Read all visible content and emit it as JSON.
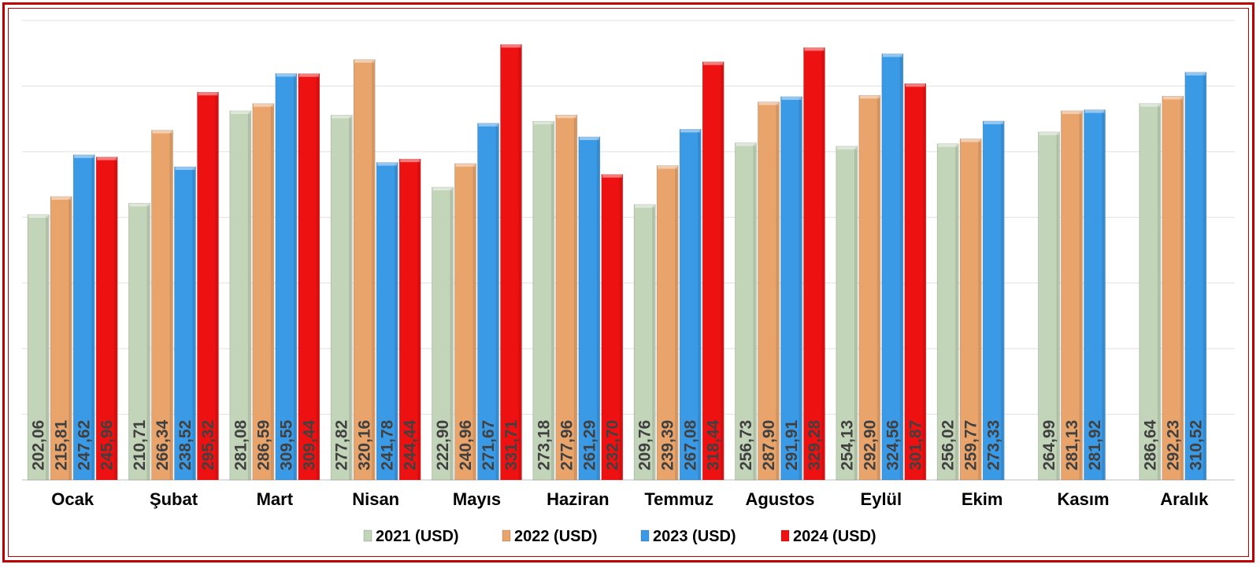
{
  "chart_data": {
    "type": "bar",
    "categories": [
      "Ocak",
      "Şubat",
      "Mart",
      "Nisan",
      "Mayıs",
      "Haziran",
      "Temmuz",
      "Agustos",
      "Eylül",
      "Ekim",
      "Kasım",
      "Aralık"
    ],
    "series": [
      {
        "name": "2021 (USD)",
        "color": "#c3d5b9",
        "values": [
          202.06,
          210.71,
          281.08,
          277.82,
          222.9,
          273.18,
          209.76,
          256.73,
          254.13,
          256.02,
          264.99,
          286.64
        ],
        "labels": [
          "202,06",
          "210,71",
          "281,08",
          "277,82",
          "222,90",
          "273,18",
          "209,76",
          "256,73",
          "254,13",
          "256,02",
          "264,99",
          "286,64"
        ]
      },
      {
        "name": "2022 (USD)",
        "color": "#e9a46b",
        "values": [
          215.81,
          266.34,
          286.59,
          320.16,
          240.96,
          277.96,
          239.39,
          287.9,
          292.9,
          259.77,
          281.13,
          292.23
        ],
        "labels": [
          "215,81",
          "266,34",
          "286,59",
          "320,16",
          "240,96",
          "277,96",
          "239,39",
          "287,90",
          "292,90",
          "259,77",
          "281,13",
          "292,23"
        ]
      },
      {
        "name": "2023 (USD)",
        "color": "#3b9ae6",
        "values": [
          247.62,
          238.52,
          309.55,
          241.78,
          271.67,
          261.29,
          267.08,
          291.91,
          324.56,
          273.33,
          281.92,
          310.52
        ],
        "labels": [
          "247,62",
          "238,52",
          "309,55",
          "241,78",
          "271,67",
          "261,29",
          "267,08",
          "291,91",
          "324,56",
          "273,33",
          "281,92",
          "310,52"
        ]
      },
      {
        "name": "2024 (USD)",
        "color": "#ee1111",
        "values": [
          245.96,
          295.32,
          309.44,
          244.44,
          331.71,
          232.7,
          318.44,
          329.28,
          301.87,
          null,
          null,
          null
        ],
        "labels": [
          "245,96",
          "295,32",
          "309,44",
          "244,44",
          "331,71",
          "232,70",
          "318,44",
          "329,28",
          "301,87",
          null,
          null,
          null
        ]
      }
    ],
    "ylim": [
      0,
      350
    ],
    "grid": true,
    "legend_position": "bottom",
    "title": "",
    "xlabel": "",
    "ylabel": ""
  }
}
